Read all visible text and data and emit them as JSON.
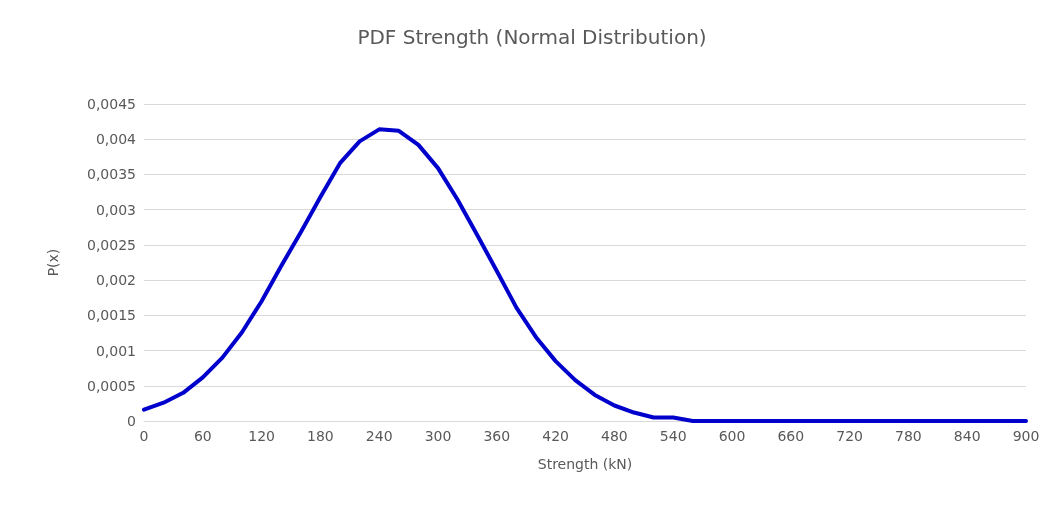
{
  "chart_data": {
    "type": "line",
    "title": "PDF Strength (Normal Distribution)",
    "xlabel": "Strength (kN)",
    "ylabel": "P(x)",
    "x": [
      0,
      20,
      40,
      60,
      80,
      100,
      120,
      140,
      160,
      180,
      200,
      220,
      240,
      260,
      280,
      300,
      320,
      340,
      360,
      380,
      400,
      420,
      440,
      460,
      480,
      500,
      520,
      540,
      560,
      580,
      600,
      620,
      640,
      660,
      680,
      700,
      720,
      740,
      760,
      780,
      800,
      820,
      840,
      860,
      880,
      900
    ],
    "series": [
      {
        "color": "#0000cc",
        "values": [
          0.00016,
          0.00026,
          0.0004,
          0.00062,
          0.0009,
          0.00126,
          0.0017,
          0.0022,
          0.00268,
          0.00318,
          0.00366,
          0.00397,
          0.00414,
          0.00412,
          0.00392,
          0.00359,
          0.00314,
          0.00264,
          0.00213,
          0.00161,
          0.00119,
          0.00085,
          0.00058,
          0.00037,
          0.00022,
          0.00012,
          5e-05,
          5e-05,
          0,
          0,
          0,
          0,
          0,
          0,
          0,
          0,
          0,
          0,
          0,
          0,
          0,
          0,
          0,
          0,
          0,
          0
        ]
      }
    ],
    "xlim": [
      0,
      900
    ],
    "xticks": [
      0,
      60,
      120,
      180,
      240,
      300,
      360,
      420,
      480,
      540,
      600,
      660,
      720,
      780,
      840,
      900
    ],
    "ylim": [
      0,
      0.0045
    ],
    "yticks": [
      {
        "value": 0,
        "label": "0"
      },
      {
        "value": 0.0005,
        "label": "0,0005"
      },
      {
        "value": 0.001,
        "label": "0,001"
      },
      {
        "value": 0.0015,
        "label": "0,0015"
      },
      {
        "value": 0.002,
        "label": "0,002"
      },
      {
        "value": 0.0025,
        "label": "0,0025"
      },
      {
        "value": 0.003,
        "label": "0,003"
      },
      {
        "value": 0.0035,
        "label": "0,0035"
      },
      {
        "value": 0.004,
        "label": "0,004"
      },
      {
        "value": 0.0045,
        "label": "0,0045"
      }
    ],
    "grid": "y",
    "marker": "none",
    "line_style": "solid"
  }
}
